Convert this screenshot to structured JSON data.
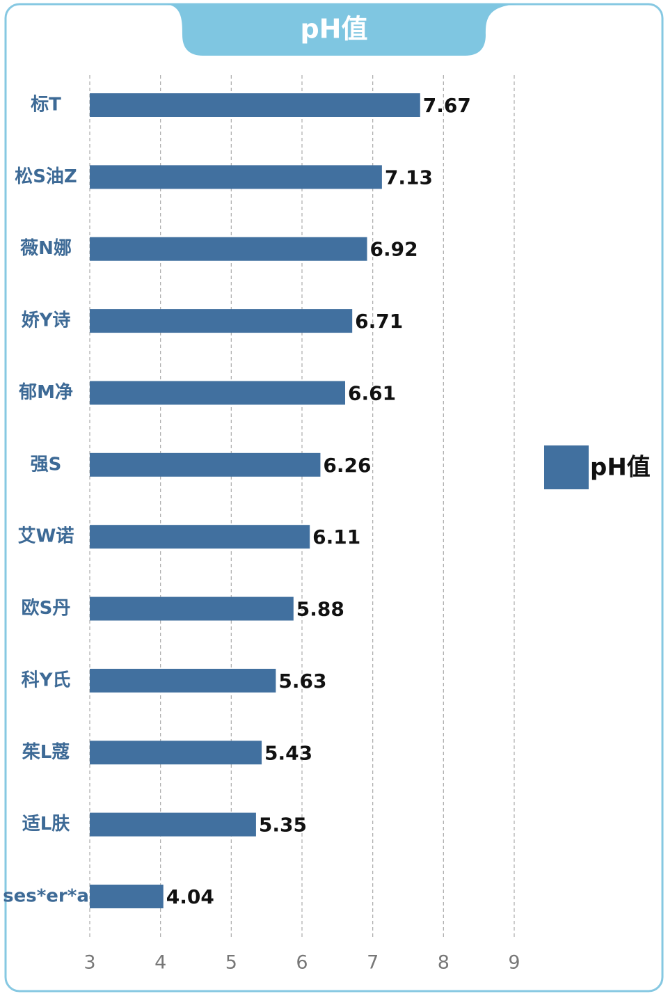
{
  "chart_data": {
    "type": "bar",
    "orientation": "horizontal",
    "title": "pH值",
    "categories": [
      "标T",
      "松S油Z",
      "薇N娜",
      "娇Y诗",
      "郁M净",
      "强S",
      "艾W诺",
      "欧S丹",
      "科Y氏",
      "茱L蔻",
      "适L肤",
      "ses*er*a"
    ],
    "series": [
      {
        "name": "pH值",
        "color": "#41709f",
        "values": [
          7.67,
          7.13,
          6.92,
          6.71,
          6.61,
          6.26,
          6.11,
          5.88,
          5.63,
          5.43,
          5.35,
          4.04
        ]
      }
    ],
    "xlim": [
      3,
      9
    ],
    "xticks": [
      3,
      4,
      5,
      6,
      7,
      8,
      9
    ],
    "grid": true,
    "legend": "right"
  }
}
